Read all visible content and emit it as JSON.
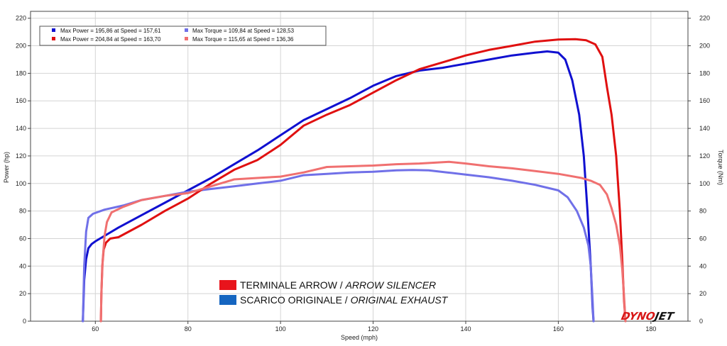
{
  "chart_data": {
    "type": "line",
    "xlabel": "Speed (mph)",
    "ylabel_left": "Power (hp)",
    "ylabel_right": "Torque (Nm)",
    "xlim": [
      46,
      188
    ],
    "ylim": [
      0,
      225
    ],
    "x_ticks": [
      60,
      80,
      100,
      120,
      140,
      160,
      180
    ],
    "y_ticks": [
      0,
      20,
      40,
      60,
      80,
      100,
      120,
      140,
      160,
      180,
      200,
      220
    ],
    "grid": true,
    "legend_position": "top-left",
    "legend_entries": [
      {
        "label": "Max Power = 195,86 at Speed = 157,61",
        "color": "#1010d0"
      },
      {
        "label": "Max Torque = 109,84 at Speed = 128,53",
        "color": "#7070e8"
      },
      {
        "label": "Max Power = 204,84 at Speed = 163,70",
        "color": "#e01010"
      },
      {
        "label": "Max Torque = 115,65 at Speed = 136,36",
        "color": "#f07070"
      }
    ],
    "key": [
      {
        "color": "#e8141c",
        "label": "TERMINALE ARROW / ",
        "label_italic": "ARROW SILENCER"
      },
      {
        "color": "#1565c0",
        "label": "SCARICO ORIGINALE / ",
        "label_italic": "ORIGINAL EXHAUST"
      }
    ],
    "brand": {
      "text_a": "DYNO",
      "text_b": "JET"
    },
    "series": [
      {
        "color": "#1010d0",
        "x": [
          57.3,
          57.6,
          58.0,
          58.5,
          59.2,
          60.0,
          62,
          65,
          70,
          75,
          80,
          85,
          90,
          95,
          100,
          105,
          110,
          115,
          120,
          125,
          130,
          135,
          140,
          145,
          150,
          155,
          157.6,
          160,
          161.5,
          163,
          164.5,
          165.5,
          166.3,
          167.0,
          167.4,
          167.6
        ],
        "values": [
          0,
          30,
          45,
          53,
          56,
          58,
          62,
          68,
          77,
          86,
          95,
          104,
          114,
          124,
          135,
          146,
          154,
          162,
          171,
          178,
          182,
          184,
          187,
          190,
          193,
          195,
          195.9,
          195,
          190,
          175,
          150,
          120,
          80,
          40,
          10,
          0
        ]
      },
      {
        "color": "#7070e8",
        "x": [
          57.3,
          57.6,
          58.0,
          58.5,
          59.5,
          62,
          66,
          70,
          75,
          80,
          85,
          90,
          95,
          100,
          105,
          110,
          115,
          120,
          125,
          128.5,
          132,
          136,
          140,
          145,
          150,
          155,
          160,
          162,
          164,
          165.5,
          166.5,
          167.0,
          167.4,
          167.6
        ],
        "values": [
          0,
          40,
          65,
          75,
          78,
          81,
          84,
          88,
          91,
          94,
          96,
          98,
          100,
          102,
          106,
          107,
          108,
          108.5,
          109.5,
          109.8,
          109.5,
          108,
          106.5,
          104.5,
          102,
          99,
          95,
          90,
          80,
          68,
          55,
          40,
          15,
          0
        ]
      },
      {
        "color": "#e01010",
        "x": [
          61.2,
          61.3,
          61.5,
          61.8,
          62.3,
          63.2,
          65,
          70,
          75,
          80,
          85,
          90,
          95,
          100,
          105,
          110,
          115,
          120,
          125,
          130,
          135,
          140,
          145,
          150,
          155,
          160,
          163.7,
          166,
          168,
          169.5,
          170.5,
          171.5,
          172.5,
          173.3,
          173.8,
          174.2,
          174.5
        ],
        "values": [
          0,
          20,
          40,
          52,
          57,
          60,
          61,
          70,
          80,
          89,
          100,
          110,
          117,
          128,
          142,
          150,
          157,
          166,
          175,
          183,
          188,
          193,
          197,
          200,
          203,
          204.5,
          204.8,
          204,
          201,
          192,
          170,
          150,
          120,
          80,
          45,
          15,
          0
        ]
      },
      {
        "color": "#f07070",
        "x": [
          61.2,
          61.3,
          61.6,
          62.0,
          62.5,
          63.5,
          66,
          70,
          75,
          80,
          85,
          90,
          95,
          100,
          105,
          110,
          115,
          120,
          125,
          130,
          136.4,
          140,
          145,
          150,
          155,
          160,
          165,
          167,
          169,
          170.5,
          171.5,
          172.5,
          173.3,
          173.8,
          174.2,
          174.5
        ],
        "values": [
          0,
          20,
          45,
          62,
          72,
          79,
          83,
          88,
          91,
          93,
          98,
          103,
          104,
          105,
          108,
          112,
          112.5,
          113,
          114,
          114.5,
          115.7,
          114.5,
          112.5,
          111,
          109,
          107,
          104,
          102,
          99,
          92,
          82,
          70,
          55,
          38,
          18,
          0
        ]
      }
    ]
  }
}
